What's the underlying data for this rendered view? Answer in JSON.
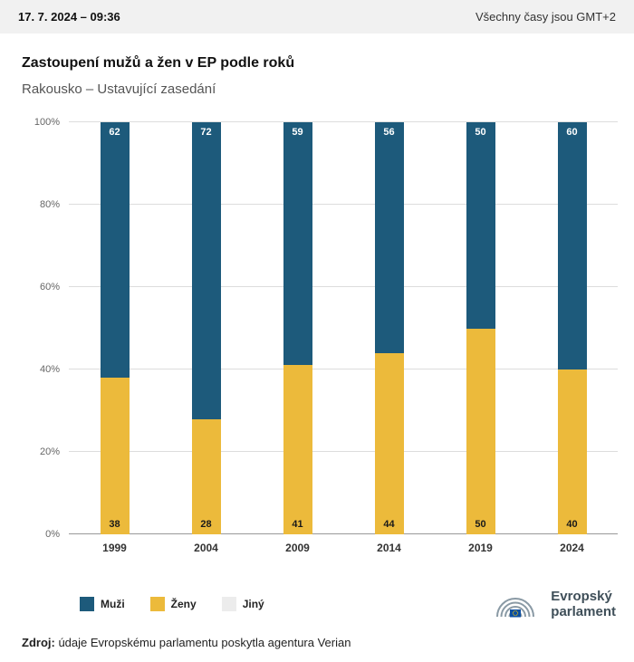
{
  "header": {
    "datetime": "17. 7. 2024 – 09:36",
    "timezone_note": "Všechny časy jsou GMT+2"
  },
  "title": "Zastoupení mužů a žen v EP podle roků",
  "subtitle": "Rakousko – Ustavující zasedání",
  "chart_data": {
    "type": "bar",
    "stacked": true,
    "title": "Zastoupení mužů a žen v EP podle roků",
    "subtitle": "Rakousko – Ustavující zasedání",
    "categories": [
      "1999",
      "2004",
      "2009",
      "2014",
      "2019",
      "2024"
    ],
    "series": [
      {
        "name": "Muži",
        "color": "#1d5a7b",
        "label_style": "white-top",
        "values": [
          62,
          72,
          59,
          56,
          50,
          60
        ]
      },
      {
        "name": "Ženy",
        "color": "#ecba3b",
        "label_style": "dark-bottom",
        "values": [
          38,
          28,
          41,
          44,
          50,
          40
        ]
      },
      {
        "name": "Jiný",
        "color": "#ececec",
        "label_style": "none",
        "values": [
          0,
          0,
          0,
          0,
          0,
          0
        ]
      }
    ],
    "xlabel": "",
    "ylabel": "",
    "ylim": [
      0,
      100
    ],
    "yticks": [
      "0%",
      "20%",
      "40%",
      "60%",
      "80%",
      "100%"
    ],
    "grid": true,
    "legend_position": "bottom-left"
  },
  "logo": {
    "name": "evropsky-parlament-logo",
    "line1": "Evropský",
    "line2": "parlament"
  },
  "footer": {
    "source_label": "Zdroj:",
    "source_text": " údaje Evropskému parlamentu poskytla agentura Verian"
  }
}
